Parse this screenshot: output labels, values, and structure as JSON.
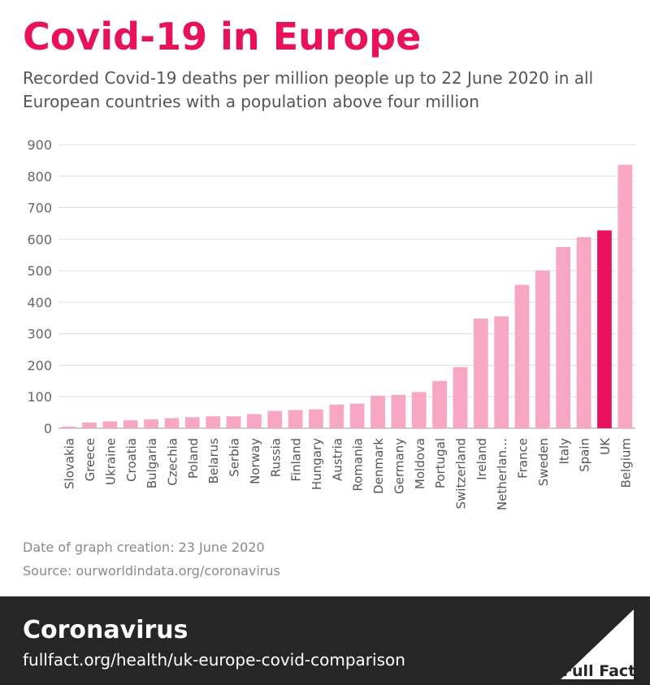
{
  "header": {
    "title": "Covid-19 in Europe",
    "subtitle": "Recorded Covid-19 deaths per million people up to 22 June 2020 in all European countries with a population above four million"
  },
  "notes": {
    "date": "Date of graph creation: 23 June 2020",
    "source": "Source: ourworldindata.org/coronavirus"
  },
  "footer": {
    "topic": "Coronavirus",
    "link": "fullfact.org/health/uk-europe-covid-comparison",
    "logo_text": "Full Fact",
    "logo_icon": "full-fact-triangle-icon"
  },
  "colors": {
    "bar": "#f7a6c3",
    "highlight": "#e8125c",
    "title": "#e8125c",
    "footer_bg": "#262626"
  },
  "chart_data": {
    "type": "bar",
    "title": "",
    "xlabel": "",
    "ylabel": "",
    "ylim": [
      0,
      900
    ],
    "yticks": [
      0,
      100,
      200,
      300,
      400,
      500,
      600,
      700,
      800,
      900
    ],
    "grid": true,
    "highlight": "UK",
    "categories": [
      "Slovakia",
      "Greece",
      "Ukraine",
      "Croatia",
      "Bulgaria",
      "Czechia",
      "Poland",
      "Belarus",
      "Serbia",
      "Norway",
      "Russia",
      "Finland",
      "Hungary",
      "Austria",
      "Romania",
      "Denmark",
      "Germany",
      "Moldova",
      "Portugal",
      "Switzerland",
      "Ireland",
      "Netherlan…",
      "France",
      "Sweden",
      "Italy",
      "Spain",
      "UK",
      "Belgium"
    ],
    "values": [
      5,
      18,
      22,
      25,
      28,
      32,
      35,
      38,
      38,
      45,
      55,
      58,
      60,
      75,
      78,
      103,
      106,
      115,
      150,
      194,
      348,
      355,
      455,
      500,
      575,
      606,
      628,
      836
    ]
  }
}
